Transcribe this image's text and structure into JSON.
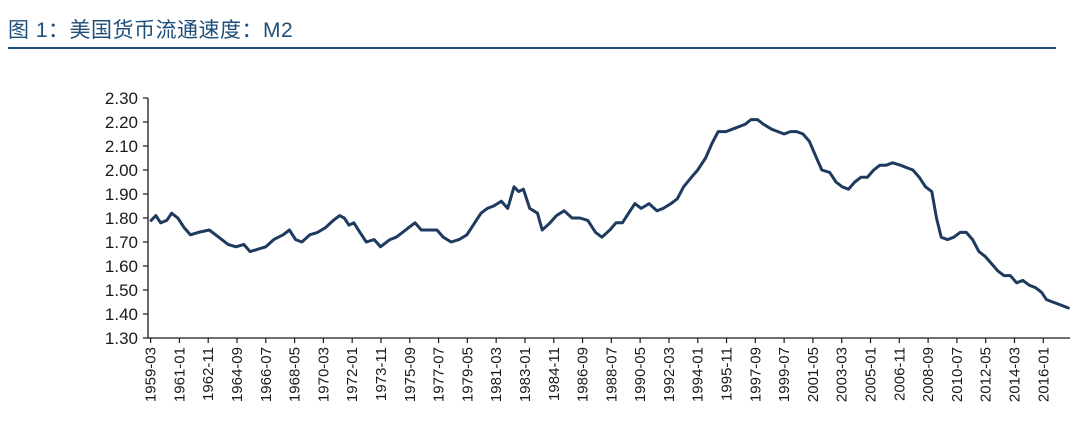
{
  "header": {
    "title": "图 1：美国货币流通速度：M2"
  },
  "colors": {
    "title": "#1f4e79",
    "line": "#1f3a5f",
    "axis": "#1a1a1a"
  },
  "chart_data": {
    "type": "line",
    "title": "",
    "xlabel": "",
    "ylabel": "",
    "ylim": [
      1.3,
      2.3
    ],
    "grid": false,
    "legend": "none",
    "yticks": [
      "2.30",
      "2.20",
      "2.10",
      "2.00",
      "1.90",
      "1.80",
      "1.70",
      "1.60",
      "1.50",
      "1.40",
      "1.30"
    ],
    "xticks": [
      "1959-03",
      "1961-01",
      "1962-11",
      "1964-09",
      "1966-07",
      "1968-05",
      "1970-03",
      "1972-01",
      "1973-11",
      "1975-09",
      "1977-07",
      "1979-05",
      "1981-03",
      "1983-01",
      "1984-11",
      "1986-09",
      "1988-07",
      "1990-05",
      "1992-03",
      "1994-01",
      "1995-11",
      "1997-09",
      "1999-07",
      "2001-05",
      "2003-03",
      "2005-01",
      "2006-11",
      "2008-09",
      "2010-07",
      "2012-05",
      "2014-03",
      "2016-01"
    ],
    "series": [
      {
        "points": [
          [
            1959.2,
            1.79
          ],
          [
            1959.5,
            1.81
          ],
          [
            1959.8,
            1.78
          ],
          [
            1960.2,
            1.79
          ],
          [
            1960.5,
            1.82
          ],
          [
            1960.9,
            1.8
          ],
          [
            1961.3,
            1.76
          ],
          [
            1961.7,
            1.73
          ],
          [
            1962.2,
            1.74
          ],
          [
            1962.9,
            1.75
          ],
          [
            1963.5,
            1.72
          ],
          [
            1964.1,
            1.69
          ],
          [
            1964.6,
            1.68
          ],
          [
            1965.1,
            1.69
          ],
          [
            1965.5,
            1.66
          ],
          [
            1966.0,
            1.67
          ],
          [
            1966.5,
            1.68
          ],
          [
            1967.0,
            1.71
          ],
          [
            1967.6,
            1.73
          ],
          [
            1968.0,
            1.75
          ],
          [
            1968.4,
            1.71
          ],
          [
            1968.8,
            1.7
          ],
          [
            1969.3,
            1.73
          ],
          [
            1969.8,
            1.74
          ],
          [
            1970.3,
            1.76
          ],
          [
            1970.8,
            1.79
          ],
          [
            1971.2,
            1.81
          ],
          [
            1971.5,
            1.8
          ],
          [
            1971.8,
            1.77
          ],
          [
            1972.1,
            1.78
          ],
          [
            1972.5,
            1.74
          ],
          [
            1972.9,
            1.7
          ],
          [
            1973.4,
            1.71
          ],
          [
            1973.8,
            1.68
          ],
          [
            1974.4,
            1.71
          ],
          [
            1974.8,
            1.72
          ],
          [
            1975.2,
            1.74
          ],
          [
            1975.6,
            1.76
          ],
          [
            1976.0,
            1.78
          ],
          [
            1976.4,
            1.75
          ],
          [
            1976.9,
            1.75
          ],
          [
            1977.4,
            1.75
          ],
          [
            1977.8,
            1.72
          ],
          [
            1978.3,
            1.7
          ],
          [
            1978.8,
            1.71
          ],
          [
            1979.3,
            1.73
          ],
          [
            1979.8,
            1.78
          ],
          [
            1980.2,
            1.82
          ],
          [
            1980.6,
            1.84
          ],
          [
            1981.0,
            1.85
          ],
          [
            1981.5,
            1.87
          ],
          [
            1981.9,
            1.84
          ],
          [
            1982.3,
            1.93
          ],
          [
            1982.6,
            1.91
          ],
          [
            1982.9,
            1.92
          ],
          [
            1983.3,
            1.84
          ],
          [
            1983.8,
            1.82
          ],
          [
            1984.1,
            1.75
          ],
          [
            1984.6,
            1.78
          ],
          [
            1985.0,
            1.81
          ],
          [
            1985.5,
            1.83
          ],
          [
            1986.0,
            1.8
          ],
          [
            1986.5,
            1.8
          ],
          [
            1987.0,
            1.79
          ],
          [
            1987.5,
            1.74
          ],
          [
            1987.9,
            1.72
          ],
          [
            1988.4,
            1.75
          ],
          [
            1988.8,
            1.78
          ],
          [
            1989.2,
            1.78
          ],
          [
            1989.6,
            1.82
          ],
          [
            1990.0,
            1.86
          ],
          [
            1990.4,
            1.84
          ],
          [
            1990.9,
            1.86
          ],
          [
            1991.4,
            1.83
          ],
          [
            1991.8,
            1.84
          ],
          [
            1992.3,
            1.86
          ],
          [
            1992.7,
            1.88
          ],
          [
            1993.1,
            1.93
          ],
          [
            1993.6,
            1.97
          ],
          [
            1994.0,
            2.0
          ],
          [
            1994.5,
            2.05
          ],
          [
            1994.9,
            2.11
          ],
          [
            1995.3,
            2.16
          ],
          [
            1995.8,
            2.16
          ],
          [
            1996.2,
            2.17
          ],
          [
            1996.6,
            2.18
          ],
          [
            1997.0,
            2.19
          ],
          [
            1997.4,
            2.21
          ],
          [
            1997.8,
            2.21
          ],
          [
            1998.2,
            2.19
          ],
          [
            1998.7,
            2.17
          ],
          [
            1999.1,
            2.16
          ],
          [
            1999.5,
            2.15
          ],
          [
            1999.9,
            2.16
          ],
          [
            2000.3,
            2.16
          ],
          [
            2000.7,
            2.15
          ],
          [
            2001.1,
            2.12
          ],
          [
            2001.5,
            2.06
          ],
          [
            2001.9,
            2.0
          ],
          [
            2002.4,
            1.99
          ],
          [
            2002.8,
            1.95
          ],
          [
            2003.2,
            1.93
          ],
          [
            2003.6,
            1.92
          ],
          [
            2004.0,
            1.95
          ],
          [
            2004.4,
            1.97
          ],
          [
            2004.8,
            1.97
          ],
          [
            2005.2,
            2.0
          ],
          [
            2005.6,
            2.02
          ],
          [
            2006.0,
            2.02
          ],
          [
            2006.4,
            2.03
          ],
          [
            2006.9,
            2.02
          ],
          [
            2007.3,
            2.01
          ],
          [
            2007.7,
            2.0
          ],
          [
            2008.1,
            1.97
          ],
          [
            2008.5,
            1.93
          ],
          [
            2008.9,
            1.91
          ],
          [
            2009.2,
            1.8
          ],
          [
            2009.5,
            1.72
          ],
          [
            2009.9,
            1.71
          ],
          [
            2010.3,
            1.72
          ],
          [
            2010.7,
            1.74
          ],
          [
            2011.1,
            1.74
          ],
          [
            2011.5,
            1.71
          ],
          [
            2011.9,
            1.66
          ],
          [
            2012.3,
            1.64
          ],
          [
            2012.7,
            1.61
          ],
          [
            2013.1,
            1.58
          ],
          [
            2013.5,
            1.56
          ],
          [
            2013.9,
            1.56
          ],
          [
            2014.3,
            1.53
          ],
          [
            2014.7,
            1.54
          ],
          [
            2015.1,
            1.52
          ],
          [
            2015.5,
            1.51
          ],
          [
            2015.9,
            1.49
          ],
          [
            2016.2,
            1.46
          ],
          [
            2016.6,
            1.45
          ],
          [
            2017.0,
            1.44
          ],
          [
            2017.4,
            1.43
          ],
          [
            2017.6,
            1.425
          ]
        ]
      }
    ]
  }
}
